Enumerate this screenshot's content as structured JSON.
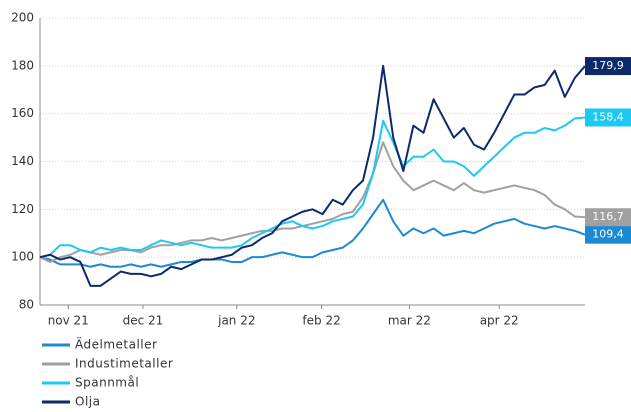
{
  "chart_data": {
    "type": "line",
    "xlim": [
      0,
      54
    ],
    "xticks": [
      {
        "value": 2.8,
        "label": "nov 21"
      },
      {
        "value": 10.2,
        "label": "dec 21"
      },
      {
        "value": 19.5,
        "label": "jan 22"
      },
      {
        "value": 27.9,
        "label": "feb 22"
      },
      {
        "value": 36.6,
        "label": "mar 22"
      },
      {
        "value": 45.5,
        "label": "apr 22"
      }
    ],
    "ylim": [
      80,
      200
    ],
    "yticks": [
      80,
      100,
      120,
      140,
      160,
      180,
      200
    ],
    "grid": true,
    "legend": "bottom-left",
    "series": [
      {
        "name": "Ädelmetaller",
        "color": "#1a8ad4",
        "end_label": "109,4",
        "values": [
          100,
          99,
          97,
          97,
          97,
          96,
          97,
          96,
          96,
          97,
          96,
          97,
          96,
          97,
          98,
          98,
          99,
          99,
          99,
          98,
          98,
          100,
          100,
          101,
          102,
          101,
          100,
          100,
          102,
          103,
          104,
          107,
          112,
          118,
          124,
          115,
          109,
          112,
          110,
          112,
          109,
          110,
          111,
          110,
          112,
          114,
          115,
          116,
          114,
          113,
          112,
          113,
          112,
          111,
          109.4
        ]
      },
      {
        "name": "Industimetaller",
        "color": "#a0a0a0",
        "end_label": "116,7",
        "values": [
          100,
          98,
          100,
          101,
          103,
          102,
          101,
          102,
          103,
          103,
          102,
          104,
          105,
          105,
          106,
          107,
          107,
          108,
          107,
          108,
          109,
          110,
          111,
          111,
          112,
          112,
          113,
          114,
          115,
          116,
          118,
          119,
          125,
          135,
          148,
          138,
          132,
          128,
          130,
          132,
          130,
          128,
          131,
          128,
          127,
          128,
          129,
          130,
          129,
          128,
          126,
          122,
          120,
          117,
          116.7
        ]
      },
      {
        "name": "Spannmål",
        "color": "#1ec8f0",
        "end_label": "158,4",
        "values": [
          100,
          101,
          105,
          105,
          103,
          102,
          104,
          103,
          104,
          103,
          103,
          105,
          107,
          106,
          105,
          106,
          105,
          104,
          104,
          104,
          105,
          108,
          110,
          112,
          114,
          115,
          113,
          112,
          113,
          115,
          116,
          117,
          122,
          135,
          157,
          148,
          138,
          142,
          142,
          145,
          140,
          140,
          138,
          134,
          138,
          142,
          146,
          150,
          152,
          152,
          154,
          153,
          155,
          158,
          158.4
        ]
      },
      {
        "name": "Olja",
        "color": "#0c2a6b",
        "end_label": "179,9",
        "values": [
          100,
          101,
          99,
          100,
          98,
          88,
          88,
          91,
          94,
          93,
          93,
          92,
          93,
          96,
          95,
          97,
          99,
          99,
          100,
          101,
          104,
          105,
          108,
          110,
          115,
          117,
          119,
          120,
          118,
          124,
          122,
          128,
          132,
          150,
          180,
          150,
          136,
          155,
          152,
          166,
          158,
          150,
          154,
          147,
          145,
          152,
          160,
          168,
          168,
          171,
          172,
          178,
          167,
          175,
          179.9
        ]
      }
    ]
  }
}
